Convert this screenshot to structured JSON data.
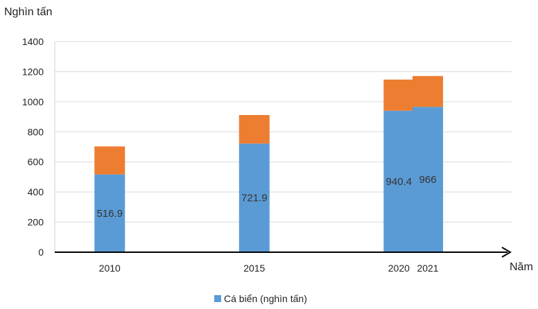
{
  "chart_data": {
    "type": "bar",
    "stacked": true,
    "ylabel": "Nghìn tấn",
    "xlabel": "Năm",
    "categories": [
      "2010",
      "2015",
      "2020",
      "2021"
    ],
    "x": [
      2010,
      2015,
      2020,
      2021
    ],
    "ylim": [
      0,
      1400
    ],
    "yticks": [
      0,
      200,
      400,
      600,
      800,
      1000,
      1200,
      1400
    ],
    "grid": true,
    "legend_position": "bottom",
    "series": [
      {
        "name": "Cá biển (nghìn tấn)",
        "values": [
          516.9,
          721.9,
          940.4,
          966
        ],
        "color": "#5B9BD5",
        "data_labels": [
          "516.9",
          "721.9",
          "940.4",
          "966"
        ]
      },
      {
        "values": [
          186,
          190,
          207,
          205
        ],
        "color": "#ED7D31"
      }
    ]
  }
}
